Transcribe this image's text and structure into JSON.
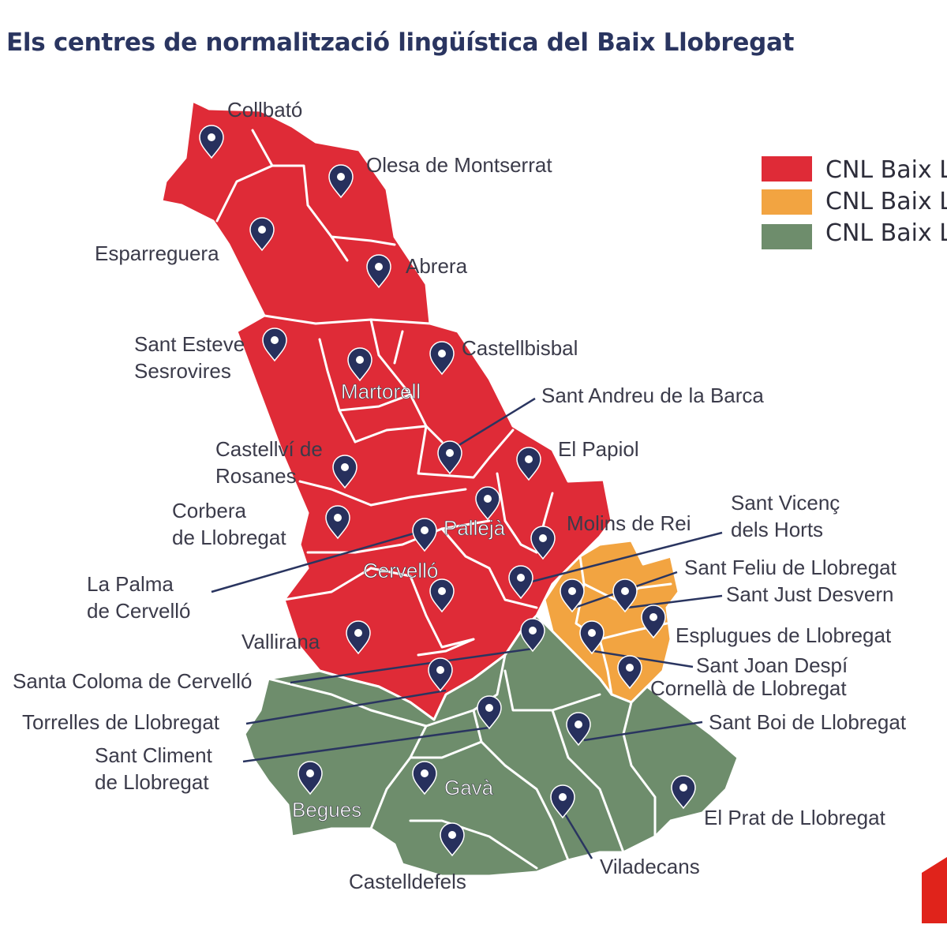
{
  "title": "Els centres de normalització lingüística del Baix Llobregat",
  "colors": {
    "red": "#df2b37",
    "orange": "#f2a441",
    "green": "#6e8d6c",
    "pin": "#27305d",
    "title": "#2a3560"
  },
  "legend": [
    {
      "label": "CNL Baix L",
      "color": "#df2b37"
    },
    {
      "label": "CNL Baix L",
      "color": "#f2a441"
    },
    {
      "label": "CNL Baix L",
      "color": "#6e8d6c"
    }
  ],
  "places": [
    {
      "name": "Collbató",
      "region": "red",
      "lines": [
        "Collbató"
      ]
    },
    {
      "name": "Olesa de Montserrat",
      "region": "red",
      "lines": [
        "Olesa de Montserrat"
      ]
    },
    {
      "name": "Esparreguera",
      "region": "red",
      "lines": [
        "Esparreguera"
      ]
    },
    {
      "name": "Abrera",
      "region": "red",
      "lines": [
        "Abrera"
      ]
    },
    {
      "name": "Sant Esteve Sesrovires",
      "region": "red",
      "lines": [
        "Sant Esteve",
        "Sesrovires"
      ]
    },
    {
      "name": "Castellbisbal",
      "region": "red",
      "lines": [
        "Castellbisbal"
      ]
    },
    {
      "name": "Martorell",
      "region": "red",
      "lines": [
        "Martorell"
      ]
    },
    {
      "name": "Sant Andreu de la Barca",
      "region": "red",
      "lines": [
        "Sant Andreu de la Barca"
      ]
    },
    {
      "name": "Castellví de Rosanes",
      "region": "red",
      "lines": [
        "Castellví de",
        "Rosanes"
      ]
    },
    {
      "name": "El Papiol",
      "region": "red",
      "lines": [
        "El Papiol"
      ]
    },
    {
      "name": "Corbera de Llobregat",
      "region": "red",
      "lines": [
        "Corbera",
        "de Llobregat"
      ]
    },
    {
      "name": "Pallejà",
      "region": "red",
      "lines": [
        "Pallejà"
      ]
    },
    {
      "name": "Molins de Rei",
      "region": "red",
      "lines": [
        "Molins de Rei"
      ]
    },
    {
      "name": "Sant Vicenç dels Horts",
      "region": "red",
      "lines": [
        "Sant Vicenç",
        "dels Horts"
      ]
    },
    {
      "name": "La Palma de Cervelló",
      "region": "red",
      "lines": [
        "La Palma",
        "de Cervelló"
      ]
    },
    {
      "name": "Cervelló",
      "region": "red",
      "lines": [
        "Cervelló"
      ]
    },
    {
      "name": "Sant Feliu de Llobregat",
      "region": "orange",
      "lines": [
        "Sant Feliu de Llobregat"
      ]
    },
    {
      "name": "Sant Just Desvern",
      "region": "orange",
      "lines": [
        "Sant Just Desvern"
      ]
    },
    {
      "name": "Vallirana",
      "region": "red",
      "lines": [
        "Vallirana"
      ]
    },
    {
      "name": "Esplugues de Llobregat",
      "region": "orange",
      "lines": [
        "Esplugues de Llobregat"
      ]
    },
    {
      "name": "Sant Joan Despí",
      "region": "orange",
      "lines": [
        "Sant Joan Despí"
      ]
    },
    {
      "name": "Santa Coloma de Cervelló",
      "region": "green",
      "lines": [
        "Santa Coloma de Cervelló"
      ]
    },
    {
      "name": "Cornellà de Llobregat",
      "region": "orange",
      "lines": [
        "Cornellà de Llobregat"
      ]
    },
    {
      "name": "Torrelles de Llobregat",
      "region": "red",
      "lines": [
        "Torrelles de Llobregat"
      ]
    },
    {
      "name": "Sant Boi de Llobregat",
      "region": "green",
      "lines": [
        "Sant Boi de Llobregat"
      ]
    },
    {
      "name": "Sant Climent de Llobregat",
      "region": "green",
      "lines": [
        "Sant Climent",
        "de Llobregat"
      ]
    },
    {
      "name": "Begues",
      "region": "green",
      "lines": [
        "Begues"
      ]
    },
    {
      "name": "Gavà",
      "region": "green",
      "lines": [
        "Gavà"
      ]
    },
    {
      "name": "El Prat de Llobregat",
      "region": "green",
      "lines": [
        "El Prat de Llobregat"
      ]
    },
    {
      "name": "Viladecans",
      "region": "green",
      "lines": [
        "Viladecans"
      ]
    },
    {
      "name": "Castelldefels",
      "region": "green",
      "lines": [
        "Castelldefels"
      ]
    }
  ]
}
